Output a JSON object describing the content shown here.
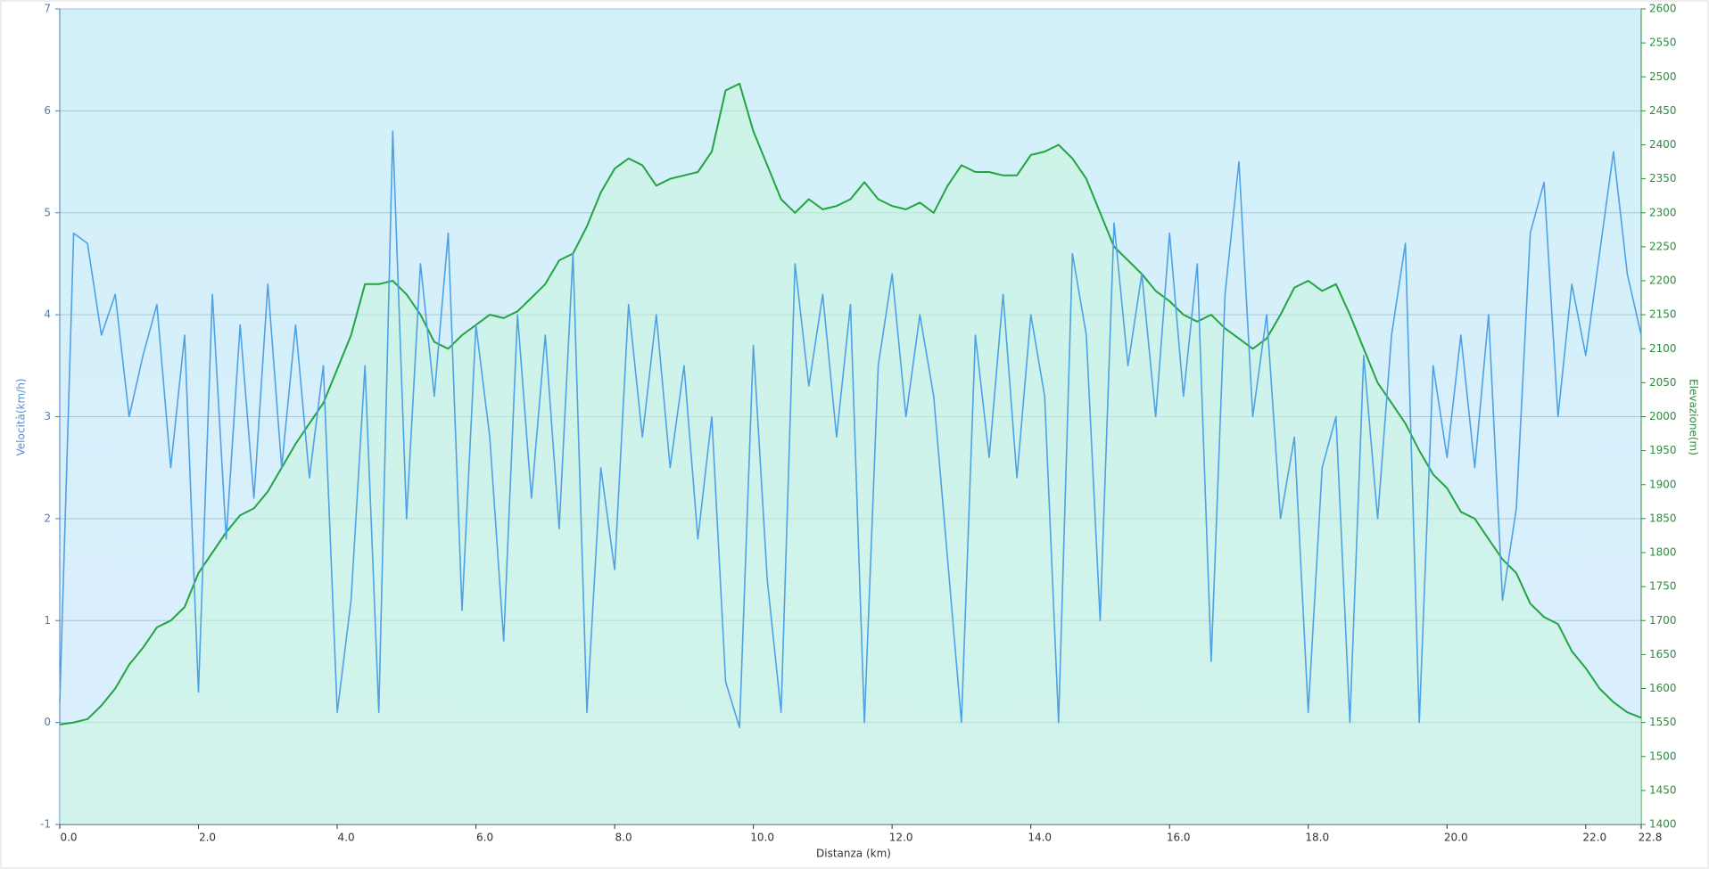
{
  "chart_data": {
    "type": "line",
    "xlabel": "Distanza  (km)",
    "ylabel": "Velocità(km/h)",
    "y2label": "Elevazione(m)",
    "x": [
      0,
      0.2,
      0.4,
      0.6,
      0.8,
      1.0,
      1.2,
      1.4,
      1.6,
      1.8,
      2.0,
      2.2,
      2.4,
      2.6,
      2.8,
      3.0,
      3.2,
      3.4,
      3.6,
      3.8,
      4.0,
      4.2,
      4.4,
      4.6,
      4.8,
      5.0,
      5.2,
      5.4,
      5.6,
      5.8,
      6.0,
      6.2,
      6.4,
      6.6,
      6.8,
      7.0,
      7.2,
      7.4,
      7.6,
      7.8,
      8.0,
      8.2,
      8.4,
      8.6,
      8.8,
      9.0,
      9.2,
      9.4,
      9.6,
      9.8,
      10.0,
      10.2,
      10.4,
      10.6,
      10.8,
      11.0,
      11.2,
      11.4,
      11.6,
      11.8,
      12.0,
      12.2,
      12.4,
      12.6,
      12.8,
      13.0,
      13.2,
      13.4,
      13.6,
      13.8,
      14.0,
      14.2,
      14.4,
      14.6,
      14.8,
      15.0,
      15.2,
      15.4,
      15.6,
      15.8,
      16.0,
      16.2,
      16.4,
      16.6,
      16.8,
      17.0,
      17.2,
      17.4,
      17.6,
      17.8,
      18.0,
      18.2,
      18.4,
      18.6,
      18.8,
      19.0,
      19.2,
      19.4,
      19.6,
      19.8,
      20.0,
      20.2,
      20.4,
      20.6,
      20.8,
      21.0,
      21.2,
      21.4,
      21.6,
      21.8,
      22.0,
      22.2,
      22.4,
      22.6,
      22.8
    ],
    "series": [
      {
        "name": "Velocità",
        "color": "#4fa1e6",
        "axis": "y",
        "values": [
          0.2,
          4.8,
          4.7,
          3.8,
          4.2,
          3.0,
          3.6,
          4.1,
          2.5,
          3.8,
          0.3,
          4.2,
          1.8,
          3.9,
          2.2,
          4.3,
          2.5,
          3.9,
          2.4,
          3.5,
          0.1,
          1.2,
          3.5,
          0.1,
          5.8,
          2.0,
          4.5,
          3.2,
          4.8,
          1.1,
          3.9,
          2.8,
          0.8,
          4.0,
          2.2,
          3.8,
          1.9,
          4.6,
          0.1,
          2.5,
          1.5,
          4.1,
          2.8,
          4.0,
          2.5,
          3.5,
          1.8,
          3.0,
          0.4,
          -0.05,
          3.7,
          1.4,
          0.1,
          4.5,
          3.3,
          4.2,
          2.8,
          4.1,
          0.0,
          3.5,
          4.4,
          3.0,
          4.0,
          3.2,
          1.6,
          0.0,
          3.8,
          2.6,
          4.2,
          2.4,
          4.0,
          3.2,
          0.0,
          4.6,
          3.8,
          1.0,
          4.9,
          3.5,
          4.4,
          3.0,
          4.8,
          3.2,
          4.5,
          0.6,
          4.2,
          5.5,
          3.0,
          4.0,
          2.0,
          2.8,
          0.1,
          2.5,
          3.0,
          0.0,
          3.6,
          2.0,
          3.8,
          4.7,
          0.0,
          3.5,
          2.6,
          3.8,
          2.5,
          4.0,
          1.2,
          2.1,
          4.8,
          5.3,
          3.0,
          4.3,
          3.6,
          4.6,
          5.6,
          4.4,
          3.8
        ]
      },
      {
        "name": "Elevazione",
        "color": "#22a540",
        "axis": "y2",
        "values": [
          1547,
          1550,
          1555,
          1575,
          1600,
          1635,
          1660,
          1690,
          1700,
          1720,
          1770,
          1800,
          1830,
          1855,
          1865,
          1890,
          1925,
          1960,
          1990,
          2020,
          2070,
          2120,
          2195,
          2195,
          2200,
          2180,
          2150,
          2110,
          2100,
          2120,
          2135,
          2150,
          2145,
          2155,
          2175,
          2195,
          2230,
          2240,
          2280,
          2330,
          2365,
          2380,
          2370,
          2340,
          2350,
          2355,
          2360,
          2390,
          2480,
          2490,
          2420,
          2370,
          2320,
          2300,
          2320,
          2305,
          2310,
          2320,
          2345,
          2320,
          2310,
          2305,
          2315,
          2300,
          2340,
          2370,
          2360,
          2360,
          2355,
          2355,
          2385,
          2390,
          2400,
          2380,
          2350,
          2300,
          2250,
          2230,
          2210,
          2185,
          2170,
          2150,
          2140,
          2150,
          2130,
          2115,
          2100,
          2115,
          2150,
          2190,
          2200,
          2185,
          2195,
          2150,
          2100,
          2050,
          2020,
          1990,
          1950,
          1915,
          1895,
          1860,
          1850,
          1820,
          1790,
          1770,
          1725,
          1705,
          1695,
          1655,
          1630,
          1600,
          1580,
          1565,
          1557
        ]
      }
    ],
    "xlim": [
      0,
      22.8
    ],
    "xticks": [
      {
        "value": 0,
        "label": "0.0"
      },
      {
        "value": 2,
        "label": "2.0"
      },
      {
        "value": 4,
        "label": "4.0"
      },
      {
        "value": 6,
        "label": "6.0"
      },
      {
        "value": 8,
        "label": "8.0"
      },
      {
        "value": 10,
        "label": "10.0"
      },
      {
        "value": 12,
        "label": "12.0"
      },
      {
        "value": 14,
        "label": "14.0"
      },
      {
        "value": 16,
        "label": "16.0"
      },
      {
        "value": 18,
        "label": "18.0"
      },
      {
        "value": 20,
        "label": "20.0"
      },
      {
        "value": 22,
        "label": "22.0"
      },
      22.8
    ],
    "ylim": [
      -1,
      7
    ],
    "yticks": [
      -1,
      0,
      1,
      2,
      3,
      4,
      5,
      6,
      7
    ],
    "y2lim": [
      1400,
      2600
    ],
    "y2ticks": [
      1400,
      1450,
      1500,
      1550,
      1600,
      1650,
      1700,
      1750,
      1800,
      1850,
      1900,
      1950,
      2000,
      2050,
      2100,
      2150,
      2200,
      2250,
      2300,
      2350,
      2400,
      2450,
      2500,
      2550,
      2600
    ],
    "grid": true
  }
}
